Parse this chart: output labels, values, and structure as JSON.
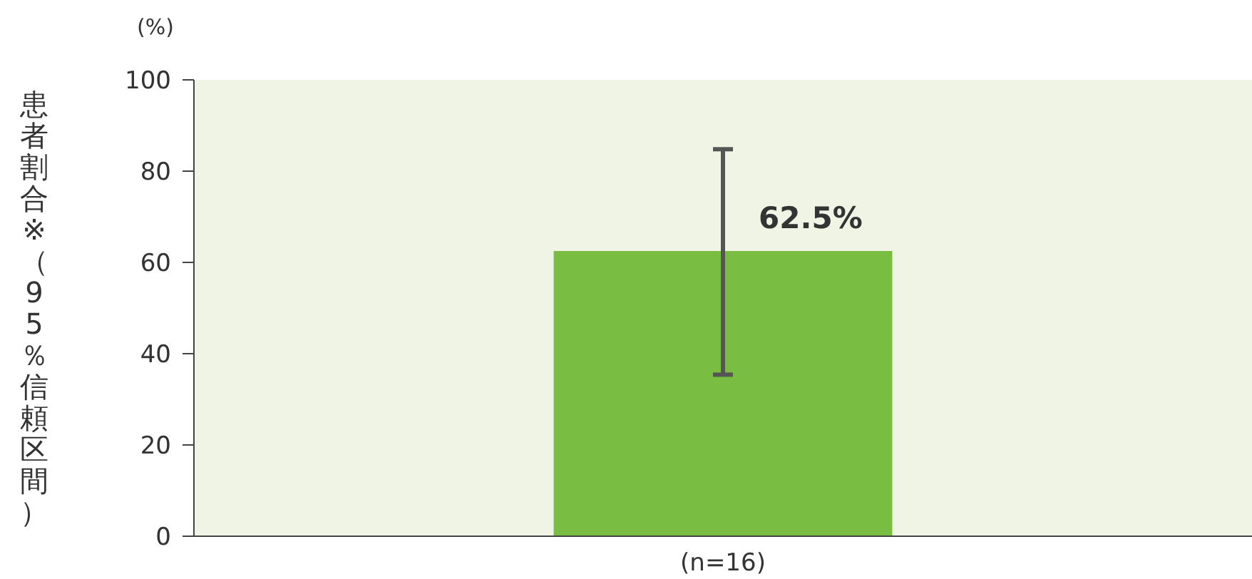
{
  "chart_data": {
    "type": "bar",
    "ylabel": "患者割合※（95％信頼区間）",
    "annotations": [
      "(%)"
    ],
    "categories": [
      "(n=16)"
    ],
    "values": [
      62.5
    ],
    "color": "#79bd42",
    "errors": [
      [
        35.4,
        84.8
      ]
    ],
    "value_labels": [
      "62.5%"
    ],
    "ylim": [
      0,
      100
    ],
    "yticks": [
      0,
      20,
      40,
      60,
      80,
      100
    ]
  }
}
